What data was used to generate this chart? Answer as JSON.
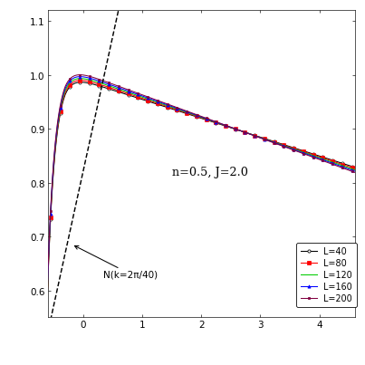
{
  "title_text": "n=0.5, J=2.0",
  "annotation_text": "N(k=2π/40)",
  "legend_entries": [
    {
      "label": "L=40",
      "color": "#000000",
      "marker": "o",
      "linestyle": "-",
      "markersize": 4
    },
    {
      "label": "L=80",
      "color": "#ff0000",
      "marker": "s",
      "linestyle": "-",
      "markersize": 4
    },
    {
      "label": "L=120",
      "color": "#00cc00",
      "marker": "None",
      "linestyle": "-",
      "markersize": 4
    },
    {
      "label": "L=160",
      "color": "#0000ff",
      "marker": "^",
      "linestyle": "-",
      "markersize": 4
    },
    {
      "label": "L=200",
      "color": "#800040",
      "marker": "s",
      "linestyle": "-",
      "markersize": 3
    }
  ],
  "xlim": [
    -0.6,
    4.6
  ],
  "ylim": [
    0.55,
    1.12
  ],
  "x_ticks": [
    0,
    1,
    2,
    3,
    4
  ],
  "y_ticks": [
    0.6,
    0.7,
    0.8,
    0.9,
    1.0,
    1.1
  ],
  "bg_color": "#ffffff",
  "dashed_color": "#000000",
  "figsize": [
    7.0,
    7.0
  ],
  "dpi": 57.7
}
